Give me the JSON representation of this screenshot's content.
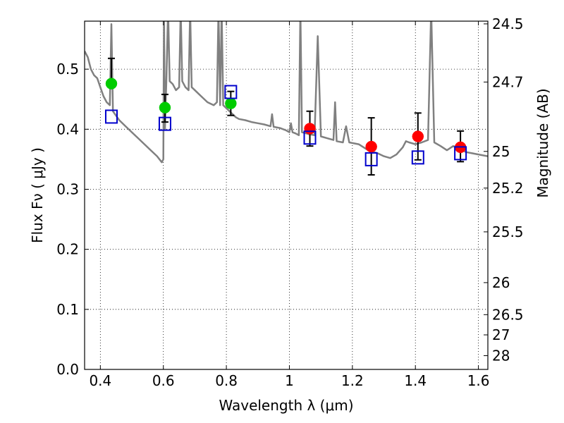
{
  "chart_data": {
    "type": "scatter",
    "xlabel": "Wavelength  λ (μm)",
    "ylabel": "Flux  Fν  ( μJy )",
    "y2label": "Magnitude (AB)",
    "xlim": [
      0.35,
      1.63
    ],
    "ylim": [
      0.0,
      0.58
    ],
    "x_ticks": [
      0.4,
      0.6,
      0.8,
      1.0,
      1.2,
      1.4,
      1.6
    ],
    "x_tick_labels": [
      "0.4",
      "0.6",
      "0.8",
      "1",
      "1.2",
      "1.4",
      "1.6"
    ],
    "y_ticks": [
      0.0,
      0.1,
      0.2,
      0.3,
      0.4,
      0.5
    ],
    "y_tick_labels": [
      "0.0",
      "0.1",
      "0.2",
      "0.3",
      "0.4",
      "0.5"
    ],
    "y2_ticks": [
      {
        "mag": 24.5,
        "label": "24.5"
      },
      {
        "mag": 24.7,
        "label": "24.7"
      },
      {
        "mag": 25.0,
        "label": "25"
      },
      {
        "mag": 25.2,
        "label": "25.2"
      },
      {
        "mag": 25.5,
        "label": "25.5"
      },
      {
        "mag": 26.0,
        "label": "26"
      },
      {
        "mag": 26.5,
        "label": "26.5"
      },
      {
        "mag": 27.0,
        "label": "27"
      },
      {
        "mag": 28.0,
        "label": "28"
      }
    ],
    "grid": true,
    "colors": {
      "model_line": "#808080",
      "optical_points": "#00cc00",
      "nir_points": "#ff0000",
      "model_boxes": "#0000cc",
      "error_bars": "#000000"
    },
    "series": [
      {
        "kind": "line",
        "points": [
          [
            0.35,
            0.53
          ],
          [
            0.36,
            0.52
          ],
          [
            0.37,
            0.5
          ],
          [
            0.38,
            0.49
          ],
          [
            0.39,
            0.485
          ],
          [
            0.4,
            0.47
          ],
          [
            0.41,
            0.455
          ],
          [
            0.42,
            0.445
          ],
          [
            0.43,
            0.44
          ],
          [
            0.435,
            0.575
          ],
          [
            0.44,
            0.43
          ],
          [
            0.46,
            0.415
          ],
          [
            0.48,
            0.405
          ],
          [
            0.5,
            0.395
          ],
          [
            0.52,
            0.385
          ],
          [
            0.54,
            0.375
          ],
          [
            0.56,
            0.365
          ],
          [
            0.58,
            0.355
          ],
          [
            0.595,
            0.345
          ],
          [
            0.6,
            0.35
          ],
          [
            0.602,
            0.6
          ],
          [
            0.605,
            0.4
          ],
          [
            0.61,
            0.49
          ],
          [
            0.615,
            0.6
          ],
          [
            0.62,
            0.48
          ],
          [
            0.63,
            0.475
          ],
          [
            0.64,
            0.465
          ],
          [
            0.65,
            0.47
          ],
          [
            0.655,
            0.6
          ],
          [
            0.66,
            0.48
          ],
          [
            0.67,
            0.47
          ],
          [
            0.68,
            0.465
          ],
          [
            0.685,
            0.6
          ],
          [
            0.69,
            0.47
          ],
          [
            0.7,
            0.465
          ],
          [
            0.72,
            0.455
          ],
          [
            0.74,
            0.445
          ],
          [
            0.76,
            0.44
          ],
          [
            0.77,
            0.445
          ],
          [
            0.775,
            0.6
          ],
          [
            0.78,
            0.44
          ],
          [
            0.785,
            0.6
          ],
          [
            0.79,
            0.44
          ],
          [
            0.8,
            0.435
          ],
          [
            0.81,
            0.43
          ],
          [
            0.82,
            0.425
          ],
          [
            0.83,
            0.42
          ],
          [
            0.84,
            0.417
          ],
          [
            0.86,
            0.415
          ],
          [
            0.88,
            0.412
          ],
          [
            0.9,
            0.41
          ],
          [
            0.92,
            0.408
          ],
          [
            0.94,
            0.405
          ],
          [
            0.945,
            0.425
          ],
          [
            0.95,
            0.404
          ],
          [
            0.97,
            0.402
          ],
          [
            0.99,
            0.398
          ],
          [
            1.0,
            0.395
          ],
          [
            1.005,
            0.41
          ],
          [
            1.01,
            0.395
          ],
          [
            1.02,
            0.393
          ],
          [
            1.03,
            0.39
          ],
          [
            1.035,
            0.6
          ],
          [
            1.04,
            0.395
          ],
          [
            1.06,
            0.392
          ],
          [
            1.08,
            0.39
          ],
          [
            1.09,
            0.555
          ],
          [
            1.1,
            0.388
          ],
          [
            1.12,
            0.385
          ],
          [
            1.14,
            0.382
          ],
          [
            1.145,
            0.445
          ],
          [
            1.15,
            0.38
          ],
          [
            1.17,
            0.378
          ],
          [
            1.18,
            0.405
          ],
          [
            1.19,
            0.378
          ],
          [
            1.22,
            0.375
          ],
          [
            1.25,
            0.365
          ],
          [
            1.28,
            0.36
          ],
          [
            1.3,
            0.355
          ],
          [
            1.32,
            0.352
          ],
          [
            1.34,
            0.358
          ],
          [
            1.36,
            0.37
          ],
          [
            1.37,
            0.38
          ],
          [
            1.38,
            0.378
          ],
          [
            1.4,
            0.375
          ],
          [
            1.42,
            0.378
          ],
          [
            1.44,
            0.382
          ],
          [
            1.45,
            0.6
          ],
          [
            1.46,
            0.378
          ],
          [
            1.48,
            0.372
          ],
          [
            1.5,
            0.365
          ],
          [
            1.52,
            0.372
          ],
          [
            1.54,
            0.368
          ],
          [
            1.56,
            0.362
          ],
          [
            1.58,
            0.36
          ],
          [
            1.6,
            0.358
          ],
          [
            1.63,
            0.355
          ]
        ]
      },
      {
        "kind": "points_with_errors",
        "points": [
          {
            "x": 0.435,
            "y": 0.476,
            "yerr_low": 0.476,
            "yerr_high": 0.518
          },
          {
            "x": 0.605,
            "y": 0.436,
            "yerr_low": 0.412,
            "yerr_high": 0.458
          },
          {
            "x": 0.814,
            "y": 0.443,
            "yerr_low": 0.423,
            "yerr_high": 0.463
          }
        ]
      },
      {
        "kind": "points_with_errors",
        "points": [
          {
            "x": 1.065,
            "y": 0.401,
            "yerr_low": 0.372,
            "yerr_high": 0.43
          },
          {
            "x": 1.26,
            "y": 0.371,
            "yerr_low": 0.324,
            "yerr_high": 0.419
          },
          {
            "x": 1.408,
            "y": 0.388,
            "yerr_low": 0.349,
            "yerr_high": 0.427
          },
          {
            "x": 1.543,
            "y": 0.37,
            "yerr_low": 0.346,
            "yerr_high": 0.397
          }
        ]
      },
      {
        "kind": "boxes",
        "points": [
          {
            "x": 0.435,
            "y": 0.421
          },
          {
            "x": 0.605,
            "y": 0.409
          },
          {
            "x": 0.814,
            "y": 0.462
          },
          {
            "x": 1.065,
            "y": 0.386
          },
          {
            "x": 1.26,
            "y": 0.35
          },
          {
            "x": 1.408,
            "y": 0.353
          },
          {
            "x": 1.543,
            "y": 0.36
          }
        ]
      }
    ]
  }
}
